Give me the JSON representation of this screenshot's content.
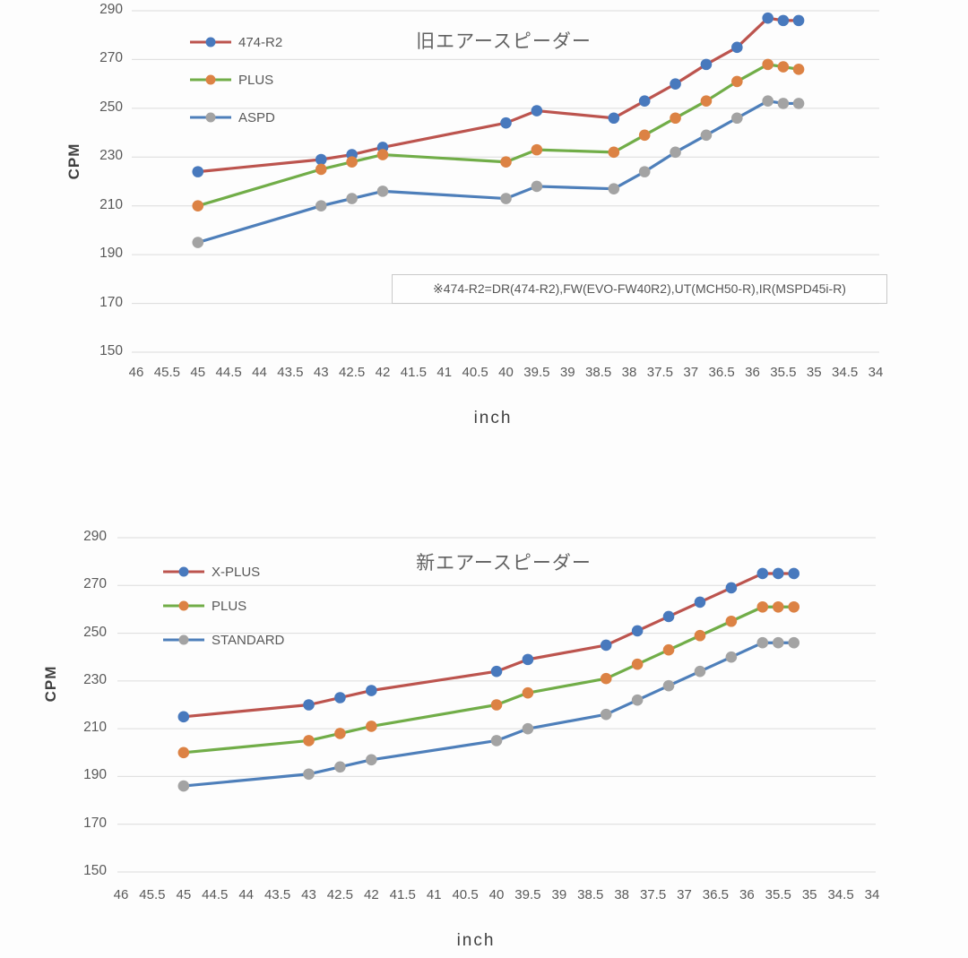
{
  "chart_data": [
    {
      "type": "line",
      "title": "旧エアースピーダー",
      "xlabel": "inch",
      "ylabel": "CPM",
      "ylim": [
        150,
        290
      ],
      "y_ticks": [
        290,
        270,
        250,
        230,
        210,
        190,
        170,
        150
      ],
      "x_axis_ticks": [
        "46",
        "45.5",
        "45",
        "44.5",
        "44",
        "43.5",
        "43",
        "42.5",
        "42",
        "41.5",
        "41",
        "40.5",
        "40",
        "39.5",
        "39",
        "38.5",
        "38",
        "37.5",
        "37",
        "36.5",
        "36",
        "35.5",
        "35",
        "34.5",
        "34"
      ],
      "x_axis_reversed": true,
      "grid": "horizontal",
      "legend_position": "top-left-inside",
      "annotation": "※474-R2=DR(474-R2),FW(EVO-FW40R2),UT(MCH50-R),IR(MSPD45i-R)",
      "x": [
        45,
        43,
        42.5,
        42,
        40,
        39.5,
        38.25,
        37.75,
        37.25,
        36.75,
        36.25,
        35.75,
        35.5,
        35.25
      ],
      "series": [
        {
          "name": "474-R2",
          "line_color": "#bc544e",
          "marker_color": "#4879bd",
          "values": [
            224,
            229,
            231,
            234,
            244,
            249,
            246,
            253,
            260,
            268,
            275,
            287,
            286,
            286
          ]
        },
        {
          "name": "PLUS",
          "line_color": "#71ad48",
          "marker_color": "#dc8244",
          "values": [
            210,
            225,
            228,
            231,
            228,
            233,
            232,
            239,
            246,
            253,
            261,
            268,
            267,
            266
          ]
        },
        {
          "name": "ASPD",
          "line_color": "#4e7fba",
          "marker_color": "#a3a3a3",
          "values": [
            195,
            210,
            213,
            216,
            213,
            218,
            217,
            224,
            232,
            239,
            246,
            253,
            252,
            252
          ]
        }
      ]
    },
    {
      "type": "line",
      "title": "新エアースピーダー",
      "xlabel": "inch",
      "ylabel": "CPM",
      "ylim": [
        150,
        290
      ],
      "y_ticks": [
        290,
        270,
        250,
        230,
        210,
        190,
        170,
        150
      ],
      "x_axis_ticks": [
        "46",
        "45.5",
        "45",
        "44.5",
        "44",
        "43.5",
        "43",
        "42.5",
        "42",
        "41.5",
        "41",
        "40.5",
        "40",
        "39.5",
        "39",
        "38.5",
        "38",
        "37.5",
        "37",
        "36.5",
        "36",
        "35.5",
        "35",
        "34.5",
        "34"
      ],
      "x_axis_reversed": true,
      "grid": "horizontal",
      "legend_position": "top-left-inside",
      "annotation": "",
      "x": [
        45,
        43,
        42.5,
        42,
        40,
        39.5,
        38.25,
        37.75,
        37.25,
        36.75,
        36.25,
        35.75,
        35.5,
        35.25
      ],
      "series": [
        {
          "name": "X-PLUS",
          "line_color": "#bc544e",
          "marker_color": "#4879bd",
          "values": [
            215,
            220,
            223,
            226,
            234,
            239,
            245,
            251,
            257,
            263,
            269,
            275,
            275,
            275
          ]
        },
        {
          "name": "PLUS",
          "line_color": "#71ad48",
          "marker_color": "#dc8244",
          "values": [
            200,
            205,
            208,
            211,
            220,
            225,
            231,
            237,
            243,
            249,
            255,
            261,
            261,
            261
          ]
        },
        {
          "name": "STANDARD",
          "line_color": "#4e7fba",
          "marker_color": "#a3a3a3",
          "values": [
            186,
            191,
            194,
            197,
            205,
            210,
            216,
            222,
            228,
            234,
            240,
            246,
            246,
            246
          ]
        }
      ]
    }
  ],
  "style": {
    "gridline_color": "#dcdcdc",
    "tick_text_color": "#595959",
    "title_text_color": "#616161"
  }
}
